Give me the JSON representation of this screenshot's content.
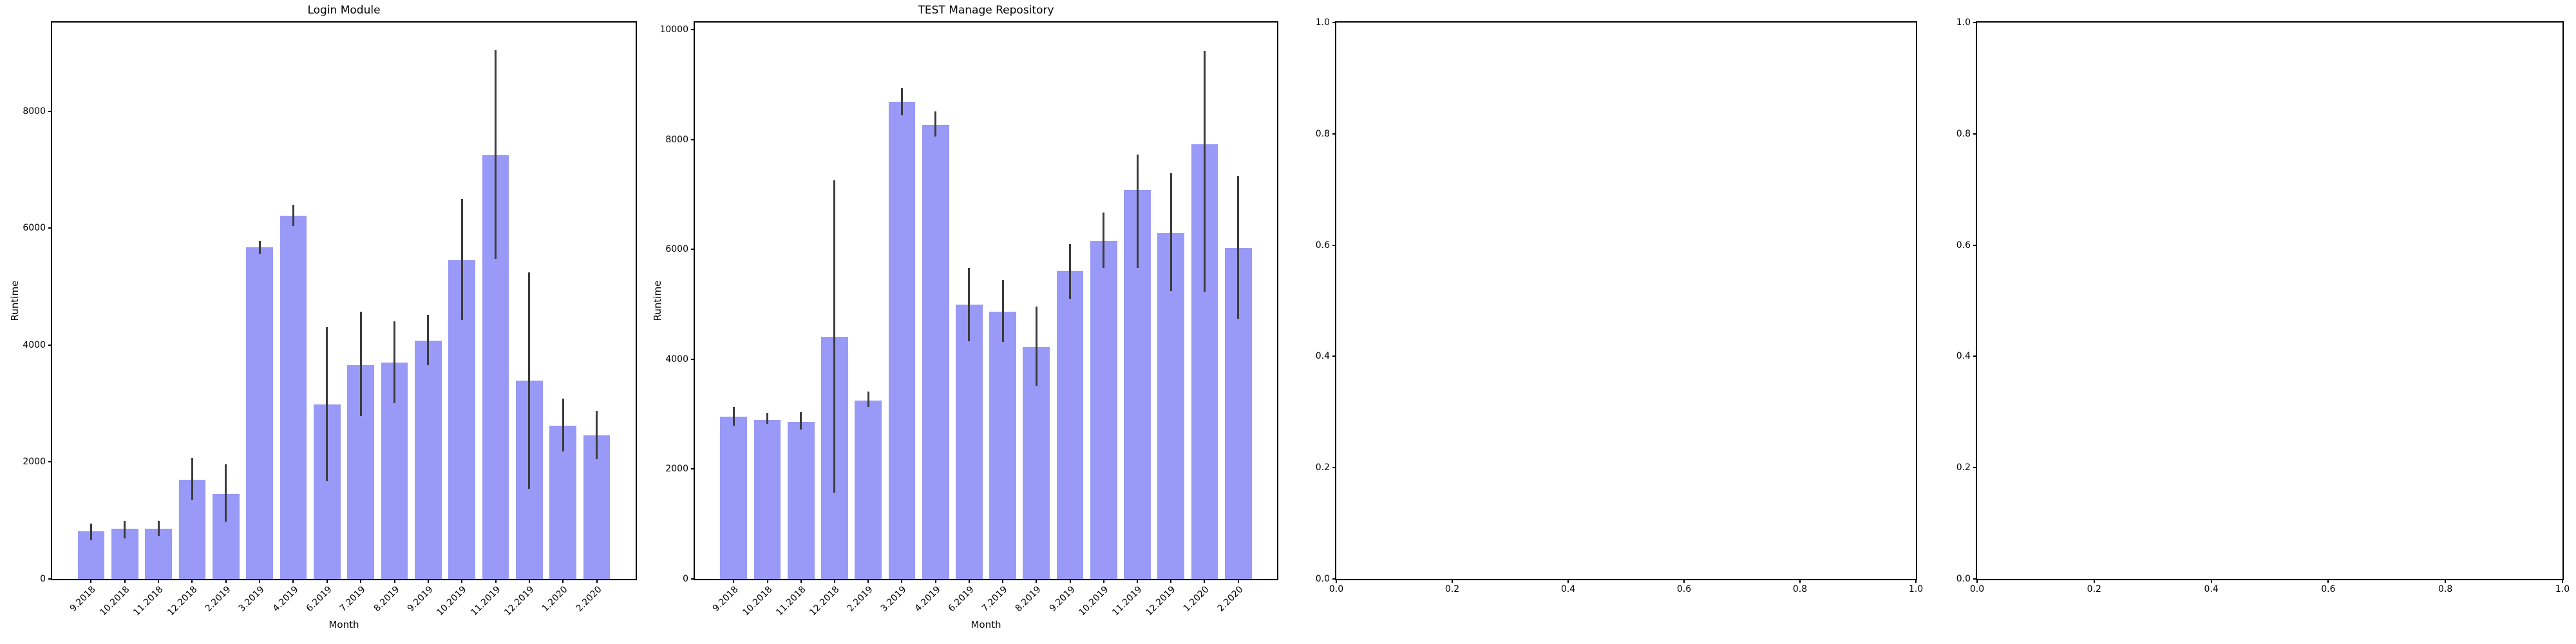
{
  "figure": {
    "background": "#ffffff",
    "bar_color": "#9999f7",
    "error_color": "#3b3b3b",
    "axis_color": "#000000",
    "text_color": "#000000"
  },
  "chart_data": [
    {
      "type": "bar",
      "title": "Login Module",
      "xlabel": "Month",
      "ylabel": "Runtime",
      "categories": [
        "9.2018",
        "10.2018",
        "11.2018",
        "12.2018",
        "2.2019",
        "3.2019",
        "4.2019",
        "6.2019",
        "7.2019",
        "8.2019",
        "9.2019",
        "10.2019",
        "11.2019",
        "12.2019",
        "1.2020",
        "2.2020"
      ],
      "values": [
        810,
        855,
        860,
        1700,
        1450,
        5670,
        6210,
        2980,
        3660,
        3700,
        4070,
        5455,
        7250,
        3390,
        2620,
        2460
      ],
      "err_low": [
        665,
        695,
        740,
        1350,
        975,
        5565,
        6030,
        1675,
        2785,
        3005,
        3655,
        4425,
        5475,
        1545,
        2180,
        2050
      ],
      "err_high": [
        945,
        995,
        990,
        2070,
        1955,
        5785,
        6400,
        4305,
        4575,
        4405,
        4520,
        6500,
        9045,
        5240,
        3080,
        2870
      ],
      "yticks": [
        0,
        2000,
        4000,
        6000,
        8000
      ],
      "ylim": [
        0,
        9515
      ],
      "grid": false,
      "legend": null
    },
    {
      "type": "bar",
      "title": "TEST Manage Repository",
      "xlabel": "Month",
      "ylabel": "Runtime",
      "categories": [
        "9.2018",
        "10.2018",
        "11.2018",
        "12.2018",
        "2.2019",
        "3.2019",
        "4.2019",
        "6.2019",
        "7.2019",
        "8.2019",
        "9.2019",
        "10.2019",
        "11.2019",
        "12.2019",
        "1.2020",
        "2.2020"
      ],
      "values": [
        2950,
        2900,
        2860,
        4410,
        3250,
        8690,
        8270,
        5000,
        4870,
        4220,
        5600,
        6160,
        7080,
        6300,
        7910,
        6030
      ],
      "err_low": [
        2785,
        2825,
        2715,
        1570,
        3125,
        8445,
        8050,
        4325,
        4315,
        3515,
        5105,
        5665,
        5665,
        5240,
        5235,
        4740
      ],
      "err_high": [
        3135,
        3020,
        3040,
        7255,
        3415,
        8935,
        8515,
        5660,
        5440,
        4960,
        6100,
        6670,
        7730,
        7390,
        9620,
        7335
      ],
      "yticks": [
        0,
        2000,
        4000,
        6000,
        8000,
        10000
      ],
      "ylim": [
        0,
        10130
      ],
      "grid": false,
      "legend": null
    },
    {
      "type": "empty",
      "title": "",
      "xlabel": "",
      "ylabel": "",
      "xtick_labels": [
        "0.0",
        "0.2",
        "0.4",
        "0.6",
        "0.8",
        "1.0"
      ],
      "ytick_labels": [
        "0.0",
        "0.2",
        "0.4",
        "0.6",
        "0.8",
        "1.0"
      ],
      "xlim": [
        0,
        1
      ],
      "ylim": [
        0,
        1
      ],
      "grid": false,
      "legend": null
    },
    {
      "type": "empty",
      "title": "",
      "xlabel": "",
      "ylabel": "",
      "xtick_labels": [
        "0.0",
        "0.2",
        "0.4",
        "0.6",
        "0.8",
        "1.0"
      ],
      "ytick_labels": [
        "0.0",
        "0.2",
        "0.4",
        "0.6",
        "0.8",
        "1.0"
      ],
      "xlim": [
        0,
        1
      ],
      "ylim": [
        0,
        1
      ],
      "grid": false,
      "legend": null
    }
  ]
}
